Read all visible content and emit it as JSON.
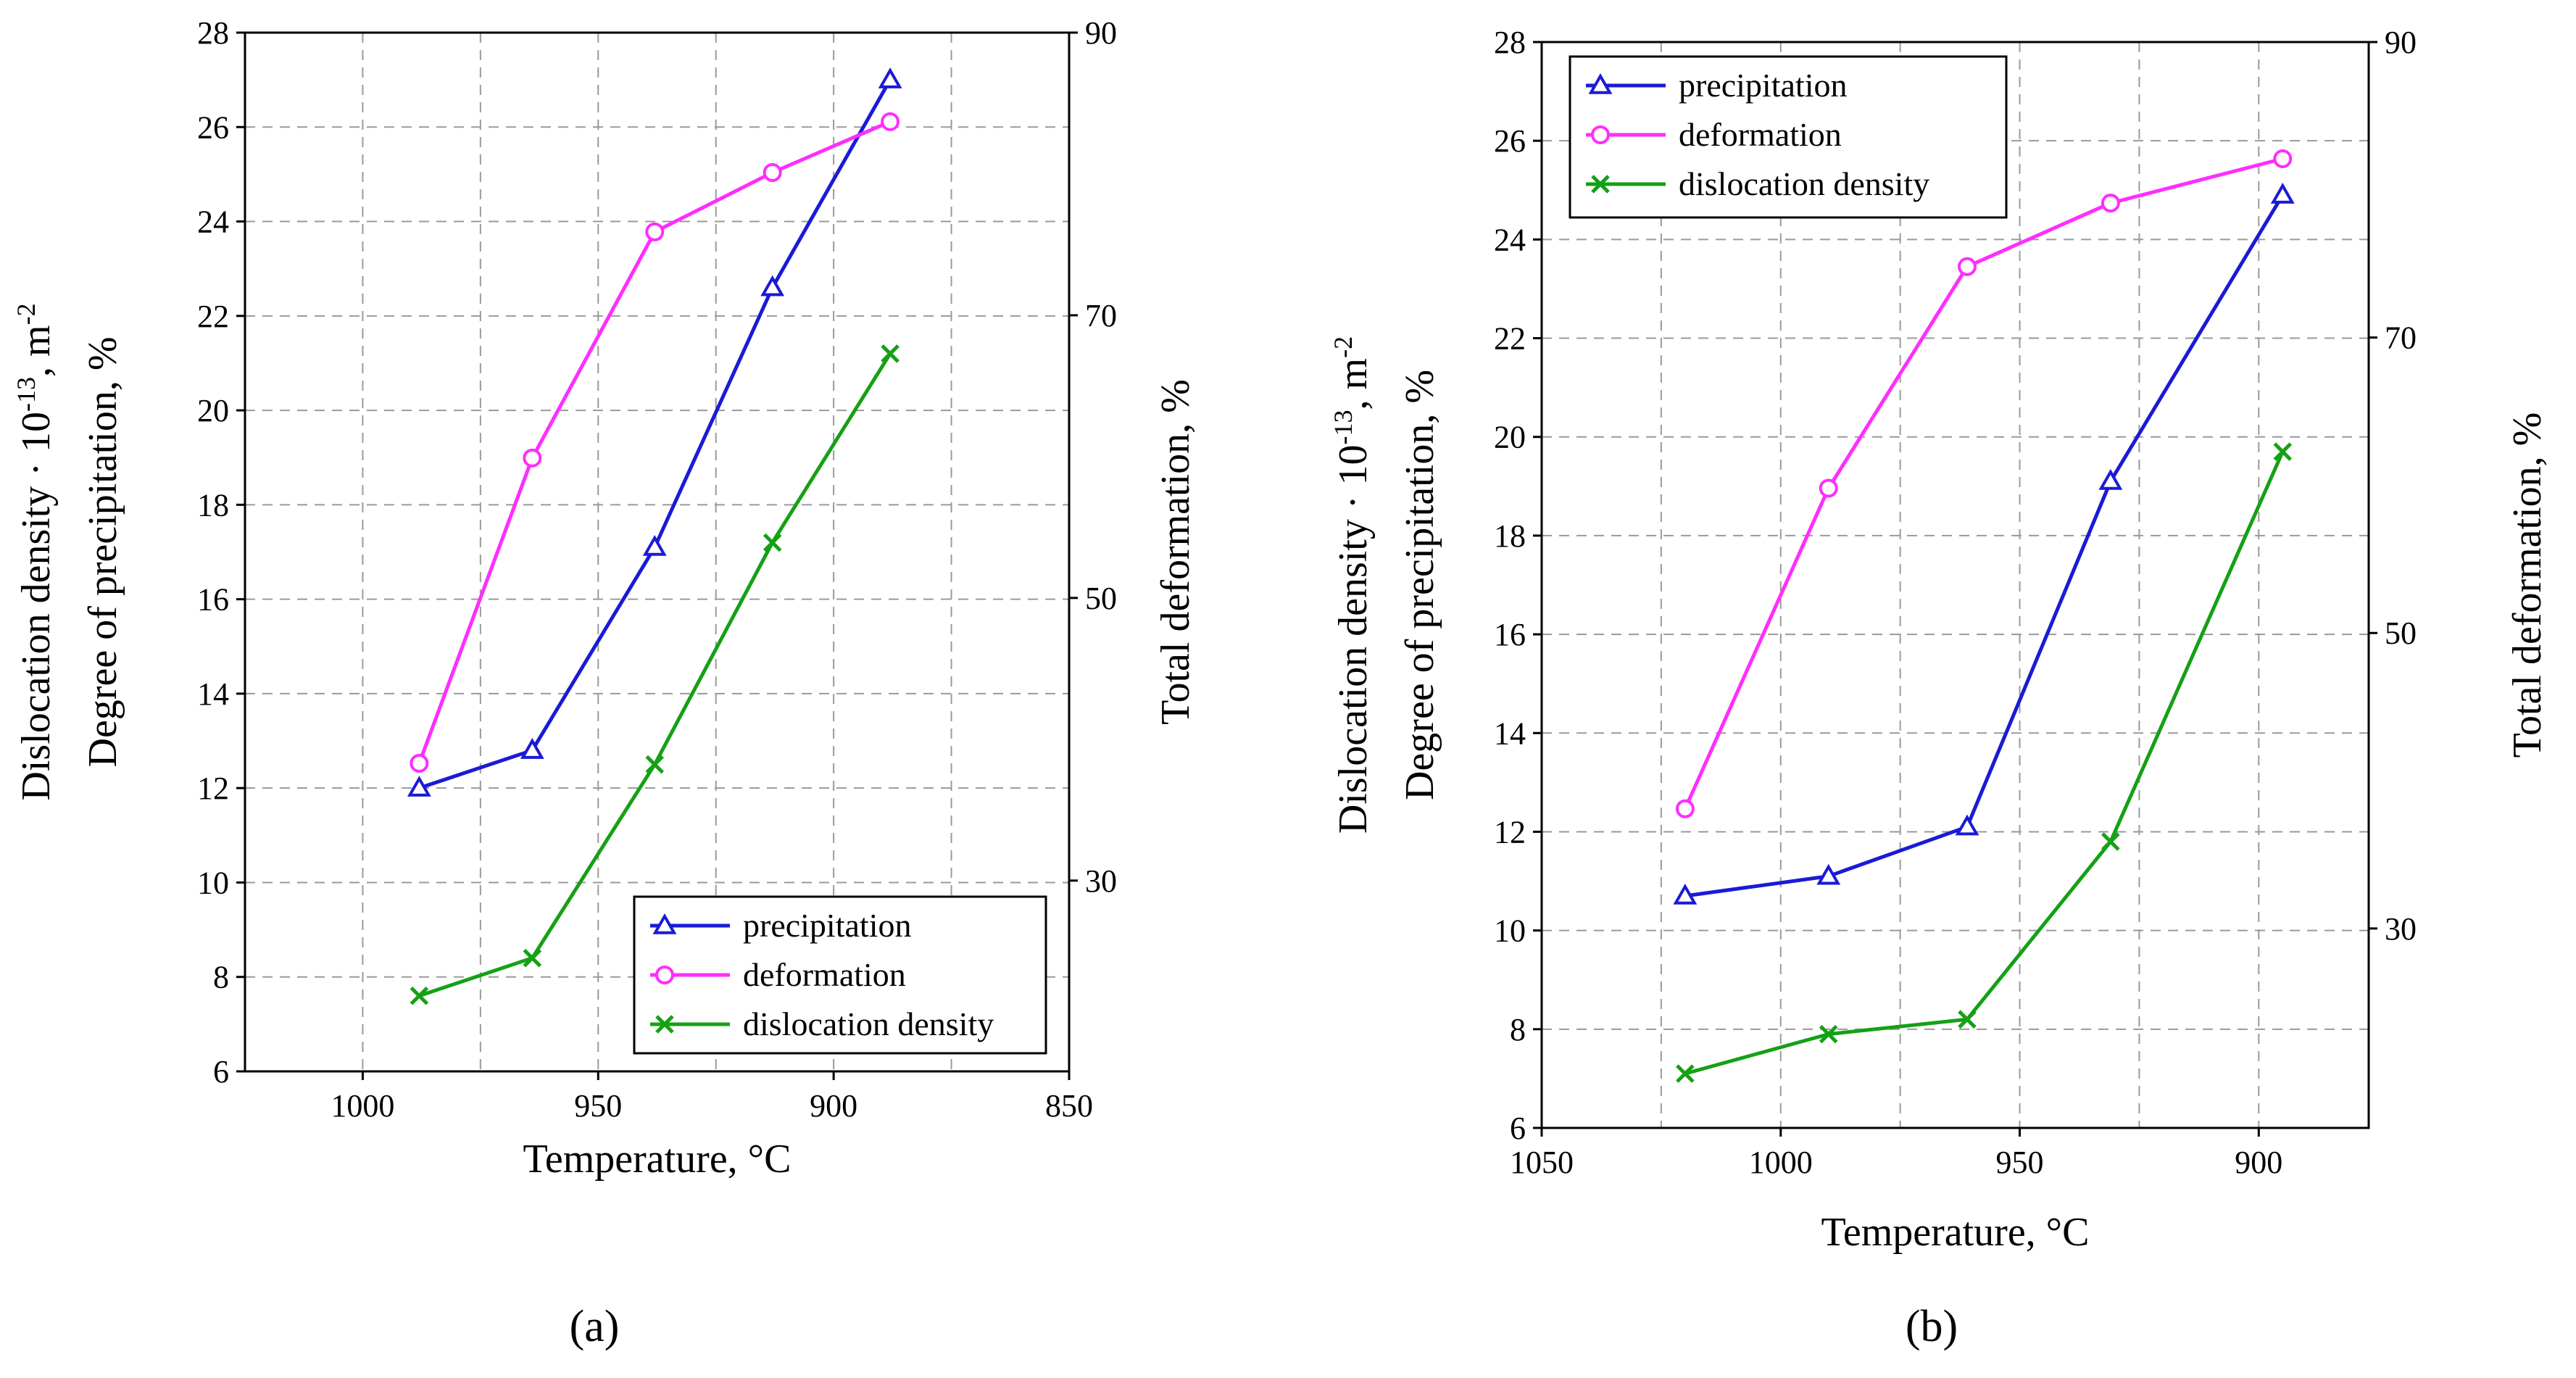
{
  "chart_data": [
    {
      "panel_label": "(a)",
      "type": "line",
      "x": [
        988,
        964,
        938,
        913,
        888
      ],
      "xlabel": "Temperature, °C",
      "xlim": [
        1025,
        850
      ],
      "xticks": [
        1000,
        950,
        900,
        850
      ],
      "ylabel_line1": "Dislocation  density · 10",
      "ylabel_exp": "-13",
      "ylabel_unit": ",  m",
      "ylabel_unit_exp": "-2",
      "ylabel_line2": "Degree of precipitation,  %",
      "ylim": [
        6,
        28
      ],
      "yticks": [
        6,
        8,
        10,
        12,
        14,
        16,
        18,
        20,
        22,
        24,
        26,
        28
      ],
      "y2label": "Total  deformation,  %",
      "y2lim": [
        16.5,
        90
      ],
      "y2ticks": [
        30,
        50,
        70,
        90
      ],
      "grid": true,
      "legend_position": "bottom-right",
      "series": [
        {
          "name": "precipitation",
          "color": "#1a1ad6",
          "marker": "triangle",
          "axis": "left",
          "values": [
            12.0,
            12.8,
            17.1,
            22.6,
            27.0
          ]
        },
        {
          "name": "deformation",
          "color": "#ff2dff",
          "marker": "circle",
          "axis": "right",
          "values": [
            38.3,
            59.9,
            75.9,
            80.1,
            83.7
          ]
        },
        {
          "name": "dislocation density",
          "color": "#15a015",
          "marker": "x",
          "axis": "left",
          "values": [
            7.6,
            8.4,
            12.5,
            17.2,
            21.2
          ]
        }
      ]
    },
    {
      "panel_label": "(b)",
      "type": "line",
      "x": [
        1020,
        990,
        961,
        931,
        895
      ],
      "xlabel": "Temperature, °C",
      "xlim": [
        1050,
        877
      ],
      "xticks": [
        1050,
        1000,
        950,
        900
      ],
      "ylabel_line1": "Dislocation  density · 10",
      "ylabel_exp": "-13",
      "ylabel_unit": ",  m",
      "ylabel_unit_exp": "-2",
      "ylabel_line2": "Degree of precipitation,  %",
      "ylim": [
        6,
        28
      ],
      "yticks": [
        6,
        8,
        10,
        12,
        14,
        16,
        18,
        20,
        22,
        24,
        26,
        28
      ],
      "y2label": "Total  deformation,  %",
      "y2lim": [
        16.5,
        90
      ],
      "y2ticks": [
        30,
        50,
        70,
        90
      ],
      "grid": true,
      "legend_position": "top-left",
      "series": [
        {
          "name": "precipitation",
          "color": "#1a1ad6",
          "marker": "triangle",
          "axis": "left",
          "values": [
            10.7,
            11.1,
            12.1,
            19.1,
            24.9
          ]
        },
        {
          "name": "deformation",
          "color": "#ff2dff",
          "marker": "circle",
          "axis": "right",
          "values": [
            38.1,
            59.8,
            74.8,
            79.1,
            82.1
          ]
        },
        {
          "name": "dislocation density",
          "color": "#15a015",
          "marker": "x",
          "axis": "left",
          "values": [
            7.1,
            7.9,
            8.2,
            11.8,
            19.7
          ]
        }
      ]
    }
  ]
}
